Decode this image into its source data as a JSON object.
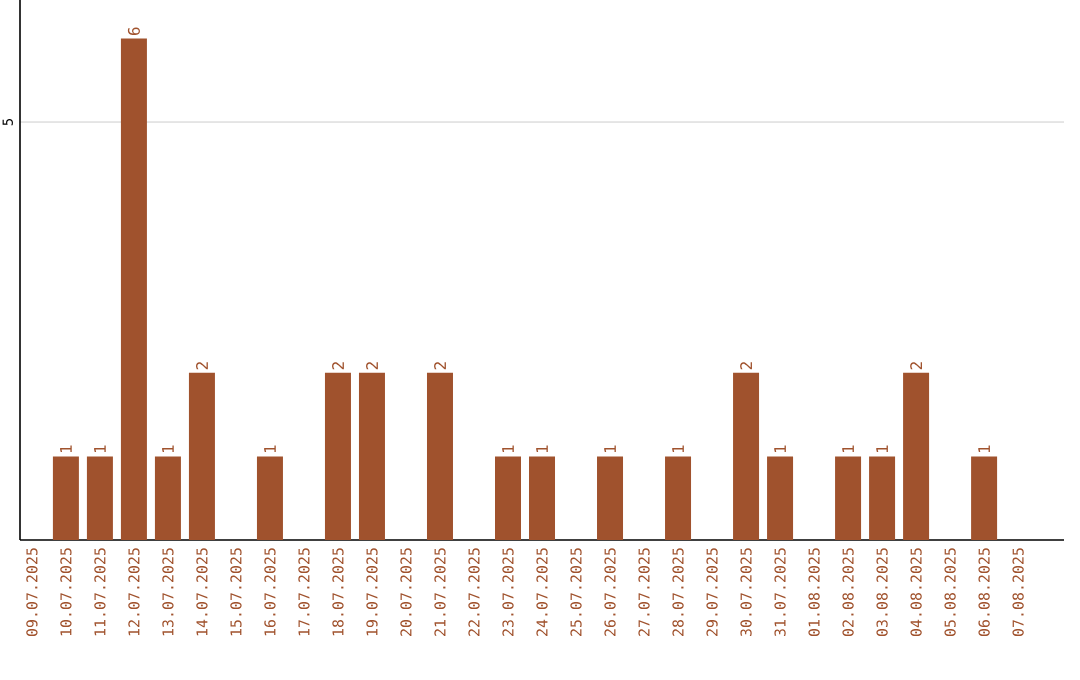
{
  "chart_data": {
    "type": "bar",
    "color": "#a0522d",
    "categories": [
      "09.07.2025",
      "10.07.2025",
      "11.07.2025",
      "12.07.2025",
      "13.07.2025",
      "14.07.2025",
      "15.07.2025",
      "16.07.2025",
      "17.07.2025",
      "18.07.2025",
      "19.07.2025",
      "20.07.2025",
      "21.07.2025",
      "22.07.2025",
      "23.07.2025",
      "24.07.2025",
      "25.07.2025",
      "26.07.2025",
      "27.07.2025",
      "28.07.2025",
      "29.07.2025",
      "30.07.2025",
      "31.07.2025",
      "01.08.2025",
      "02.08.2025",
      "03.08.2025",
      "04.08.2025",
      "05.08.2025",
      "06.08.2025",
      "07.08.2025"
    ],
    "values": [
      0,
      1,
      1,
      6,
      1,
      2,
      0,
      1,
      0,
      2,
      2,
      0,
      2,
      0,
      1,
      1,
      0,
      1,
      0,
      1,
      0,
      2,
      1,
      0,
      1,
      1,
      2,
      0,
      1,
      0
    ],
    "value_labels": [
      null,
      "1",
      "1",
      "6",
      "1",
      "2",
      null,
      "1",
      null,
      "2",
      "2",
      null,
      "2",
      null,
      "1",
      "1",
      null,
      "1",
      null,
      "1",
      null,
      "2",
      "1",
      null,
      "1",
      "1",
      "2",
      null,
      "1",
      null
    ],
    "ylim": [
      0,
      6.46
    ],
    "yticks": [
      5
    ],
    "grid": "y"
  }
}
